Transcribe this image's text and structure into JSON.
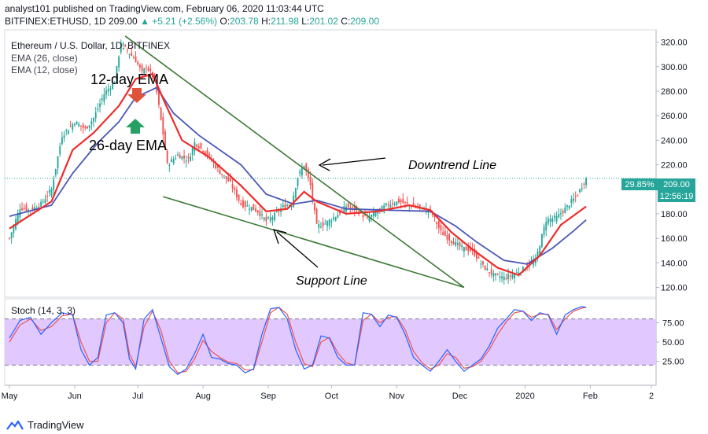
{
  "header": {
    "published": "analyst101 published on TradingView.com, February 06, 2020 11:03:44 UTC",
    "symbol": "BITFINEX:ETHUSD, 1D",
    "close": "209.00",
    "change": "▲ +5.21 (+2.56%)",
    "o_label": "O:",
    "o": "203.78",
    "h_label": "H:",
    "h": "211.98",
    "l_label": "L:",
    "l": "201.02",
    "c_label": "C:",
    "c": "209.00"
  },
  "legend": {
    "title": "Ethereum / U.S. Dollar, 1D, BITFINEX",
    "ema26": "EMA (26, close)",
    "ema12": "EMA (12, close)"
  },
  "annotations": {
    "ema12": "12-day EMA",
    "ema26": "26-day EMA",
    "downtrend": "Downtrend Line",
    "support": "Support Line"
  },
  "price_badges": {
    "percent": "29.85%",
    "price": "209.00",
    "countdown": "12:56:19"
  },
  "stoch": {
    "label": "Stoch (14, 3, 3)"
  },
  "footer": {
    "brand": "TradingView"
  },
  "colors": {
    "up": "#26a69a",
    "down": "#ef5350",
    "ema12": "#ef2b2b",
    "ema26": "#4a58b8",
    "trend": "#3c7a35",
    "stoch_k": "#2962ff",
    "stoch_d": "#ef5350",
    "stoch_fill": "#e1c8ff"
  },
  "chart_data": {
    "type": "candlestick",
    "y_ticks": [
      320,
      300,
      280,
      260,
      240,
      220,
      200,
      180,
      160,
      140,
      120
    ],
    "y_tick_labels": [
      "320.00",
      "300.00",
      "280.00",
      "260.00",
      "240.00",
      "220.00",
      "200.00",
      "180.00",
      "160.00",
      "140.00",
      "120.00"
    ],
    "ylim": [
      112,
      330
    ],
    "x_labels": [
      "May",
      "Jun",
      "Jul",
      "Aug",
      "Sep",
      "Oct",
      "Nov",
      "Dec",
      "2020",
      "Feb",
      "2"
    ],
    "x_label_days": [
      0,
      31,
      61,
      92,
      123,
      153,
      184,
      214,
      245,
      276,
      305
    ],
    "last_price": 209,
    "close_path": [
      [
        0,
        160
      ],
      [
        5,
        185
      ],
      [
        10,
        183
      ],
      [
        15,
        188
      ],
      [
        20,
        200
      ],
      [
        25,
        244
      ],
      [
        31,
        255
      ],
      [
        36,
        249
      ],
      [
        40,
        258
      ],
      [
        45,
        278
      ],
      [
        50,
        288
      ],
      [
        53,
        320
      ],
      [
        55,
        315
      ],
      [
        60,
        305
      ],
      [
        63,
        295
      ],
      [
        65,
        300
      ],
      [
        69,
        290
      ],
      [
        73,
        245
      ],
      [
        75,
        220
      ],
      [
        80,
        228
      ],
      [
        85,
        224
      ],
      [
        88,
        238
      ],
      [
        92,
        232
      ],
      [
        95,
        226
      ],
      [
        100,
        214
      ],
      [
        105,
        205
      ],
      [
        110,
        188
      ],
      [
        115,
        185
      ],
      [
        118,
        182
      ],
      [
        122,
        174
      ],
      [
        126,
        179
      ],
      [
        130,
        186
      ],
      [
        134,
        188
      ],
      [
        137,
        210
      ],
      [
        140,
        220
      ],
      [
        143,
        203
      ],
      [
        146,
        170
      ],
      [
        150,
        172
      ],
      [
        155,
        178
      ],
      [
        160,
        186
      ],
      [
        165,
        183
      ],
      [
        170,
        176
      ],
      [
        175,
        182
      ],
      [
        180,
        188
      ],
      [
        185,
        190
      ],
      [
        190,
        187
      ],
      [
        196,
        184
      ],
      [
        200,
        183
      ],
      [
        205,
        165
      ],
      [
        210,
        158
      ],
      [
        215,
        152
      ],
      [
        220,
        150
      ],
      [
        225,
        137
      ],
      [
        230,
        130
      ],
      [
        235,
        128
      ],
      [
        240,
        131
      ],
      [
        245,
        136
      ],
      [
        250,
        142
      ],
      [
        255,
        175
      ],
      [
        260,
        177
      ],
      [
        265,
        186
      ],
      [
        270,
        196
      ],
      [
        274,
        209
      ]
    ],
    "ema12_path": [
      [
        0,
        168
      ],
      [
        20,
        190
      ],
      [
        30,
        232
      ],
      [
        40,
        246
      ],
      [
        52,
        268
      ],
      [
        60,
        290
      ],
      [
        68,
        294
      ],
      [
        74,
        270
      ],
      [
        82,
        240
      ],
      [
        95,
        226
      ],
      [
        110,
        203
      ],
      [
        122,
        182
      ],
      [
        132,
        184
      ],
      [
        140,
        198
      ],
      [
        146,
        190
      ],
      [
        160,
        180
      ],
      [
        175,
        182
      ],
      [
        190,
        187
      ],
      [
        200,
        183
      ],
      [
        210,
        165
      ],
      [
        220,
        151
      ],
      [
        232,
        136
      ],
      [
        242,
        130
      ],
      [
        252,
        146
      ],
      [
        262,
        171
      ],
      [
        274,
        186
      ]
    ],
    "ema26_path": [
      [
        0,
        178
      ],
      [
        20,
        187
      ],
      [
        30,
        213
      ],
      [
        42,
        238
      ],
      [
        52,
        255
      ],
      [
        60,
        275
      ],
      [
        70,
        283
      ],
      [
        78,
        262
      ],
      [
        90,
        244
      ],
      [
        110,
        220
      ],
      [
        122,
        196
      ],
      [
        135,
        188
      ],
      [
        146,
        191
      ],
      [
        160,
        184
      ],
      [
        180,
        183
      ],
      [
        200,
        182
      ],
      [
        212,
        170
      ],
      [
        222,
        157
      ],
      [
        235,
        142
      ],
      [
        246,
        139
      ],
      [
        258,
        152
      ],
      [
        268,
        166
      ],
      [
        274,
        175
      ]
    ],
    "trendlines": [
      {
        "name": "downtrend",
        "from": [
          55,
          325
        ],
        "to": [
          216,
          120
        ]
      },
      {
        "name": "support",
        "from": [
          73,
          194
        ],
        "to": [
          216,
          120
        ]
      }
    ],
    "stoch": {
      "ylim": [
        0,
        100
      ],
      "levels": [
        20,
        80
      ],
      "y_tick_labels": [
        "75.00",
        "50.00",
        "25.00"
      ],
      "y_ticks": [
        75,
        50,
        25
      ],
      "k_path": [
        [
          0,
          55
        ],
        [
          5,
          78
        ],
        [
          10,
          82
        ],
        [
          15,
          60
        ],
        [
          20,
          75
        ],
        [
          25,
          88
        ],
        [
          30,
          85
        ],
        [
          34,
          40
        ],
        [
          38,
          20
        ],
        [
          42,
          30
        ],
        [
          46,
          85
        ],
        [
          50,
          88
        ],
        [
          54,
          75
        ],
        [
          57,
          28
        ],
        [
          60,
          15
        ],
        [
          64,
          80
        ],
        [
          68,
          92
        ],
        [
          72,
          55
        ],
        [
          76,
          18
        ],
        [
          80,
          8
        ],
        [
          84,
          15
        ],
        [
          88,
          35
        ],
        [
          92,
          60
        ],
        [
          96,
          30
        ],
        [
          100,
          28
        ],
        [
          104,
          22
        ],
        [
          108,
          20
        ],
        [
          112,
          10
        ],
        [
          116,
          15
        ],
        [
          120,
          60
        ],
        [
          124,
          93
        ],
        [
          128,
          95
        ],
        [
          132,
          80
        ],
        [
          136,
          40
        ],
        [
          140,
          15
        ],
        [
          144,
          20
        ],
        [
          148,
          58
        ],
        [
          152,
          55
        ],
        [
          156,
          30
        ],
        [
          160,
          20
        ],
        [
          164,
          20
        ],
        [
          168,
          88
        ],
        [
          172,
          86
        ],
        [
          176,
          70
        ],
        [
          180,
          85
        ],
        [
          184,
          82
        ],
        [
          188,
          60
        ],
        [
          192,
          30
        ],
        [
          196,
          20
        ],
        [
          200,
          12
        ],
        [
          204,
          25
        ],
        [
          208,
          40
        ],
        [
          212,
          25
        ],
        [
          216,
          12
        ],
        [
          220,
          20
        ],
        [
          224,
          28
        ],
        [
          228,
          45
        ],
        [
          232,
          68
        ],
        [
          236,
          80
        ],
        [
          240,
          92
        ],
        [
          244,
          90
        ],
        [
          248,
          78
        ],
        [
          252,
          88
        ],
        [
          256,
          85
        ],
        [
          260,
          60
        ],
        [
          264,
          85
        ],
        [
          268,
          92
        ],
        [
          272,
          96
        ],
        [
          274,
          95
        ]
      ],
      "d_path": [
        [
          0,
          50
        ],
        [
          5,
          72
        ],
        [
          10,
          80
        ],
        [
          15,
          65
        ],
        [
          20,
          70
        ],
        [
          25,
          84
        ],
        [
          30,
          86
        ],
        [
          34,
          50
        ],
        [
          38,
          25
        ],
        [
          42,
          25
        ],
        [
          46,
          75
        ],
        [
          50,
          88
        ],
        [
          54,
          80
        ],
        [
          57,
          35
        ],
        [
          60,
          18
        ],
        [
          64,
          70
        ],
        [
          68,
          90
        ],
        [
          72,
          65
        ],
        [
          76,
          25
        ],
        [
          80,
          10
        ],
        [
          84,
          12
        ],
        [
          88,
          28
        ],
        [
          92,
          52
        ],
        [
          96,
          38
        ],
        [
          100,
          30
        ],
        [
          104,
          24
        ],
        [
          108,
          22
        ],
        [
          112,
          14
        ],
        [
          116,
          14
        ],
        [
          120,
          50
        ],
        [
          124,
          88
        ],
        [
          128,
          95
        ],
        [
          132,
          86
        ],
        [
          136,
          50
        ],
        [
          140,
          22
        ],
        [
          144,
          18
        ],
        [
          148,
          50
        ],
        [
          152,
          56
        ],
        [
          156,
          36
        ],
        [
          160,
          23
        ],
        [
          164,
          20
        ],
        [
          168,
          78
        ],
        [
          172,
          86
        ],
        [
          176,
          75
        ],
        [
          180,
          82
        ],
        [
          184,
          83
        ],
        [
          188,
          66
        ],
        [
          192,
          38
        ],
        [
          196,
          23
        ],
        [
          200,
          15
        ],
        [
          204,
          20
        ],
        [
          208,
          35
        ],
        [
          212,
          30
        ],
        [
          216,
          16
        ],
        [
          220,
          18
        ],
        [
          224,
          25
        ],
        [
          228,
          40
        ],
        [
          232,
          60
        ],
        [
          236,
          76
        ],
        [
          240,
          88
        ],
        [
          244,
          90
        ],
        [
          248,
          82
        ],
        [
          252,
          86
        ],
        [
          256,
          86
        ],
        [
          260,
          66
        ],
        [
          264,
          80
        ],
        [
          268,
          90
        ],
        [
          272,
          94
        ],
        [
          274,
          95
        ]
      ]
    }
  }
}
